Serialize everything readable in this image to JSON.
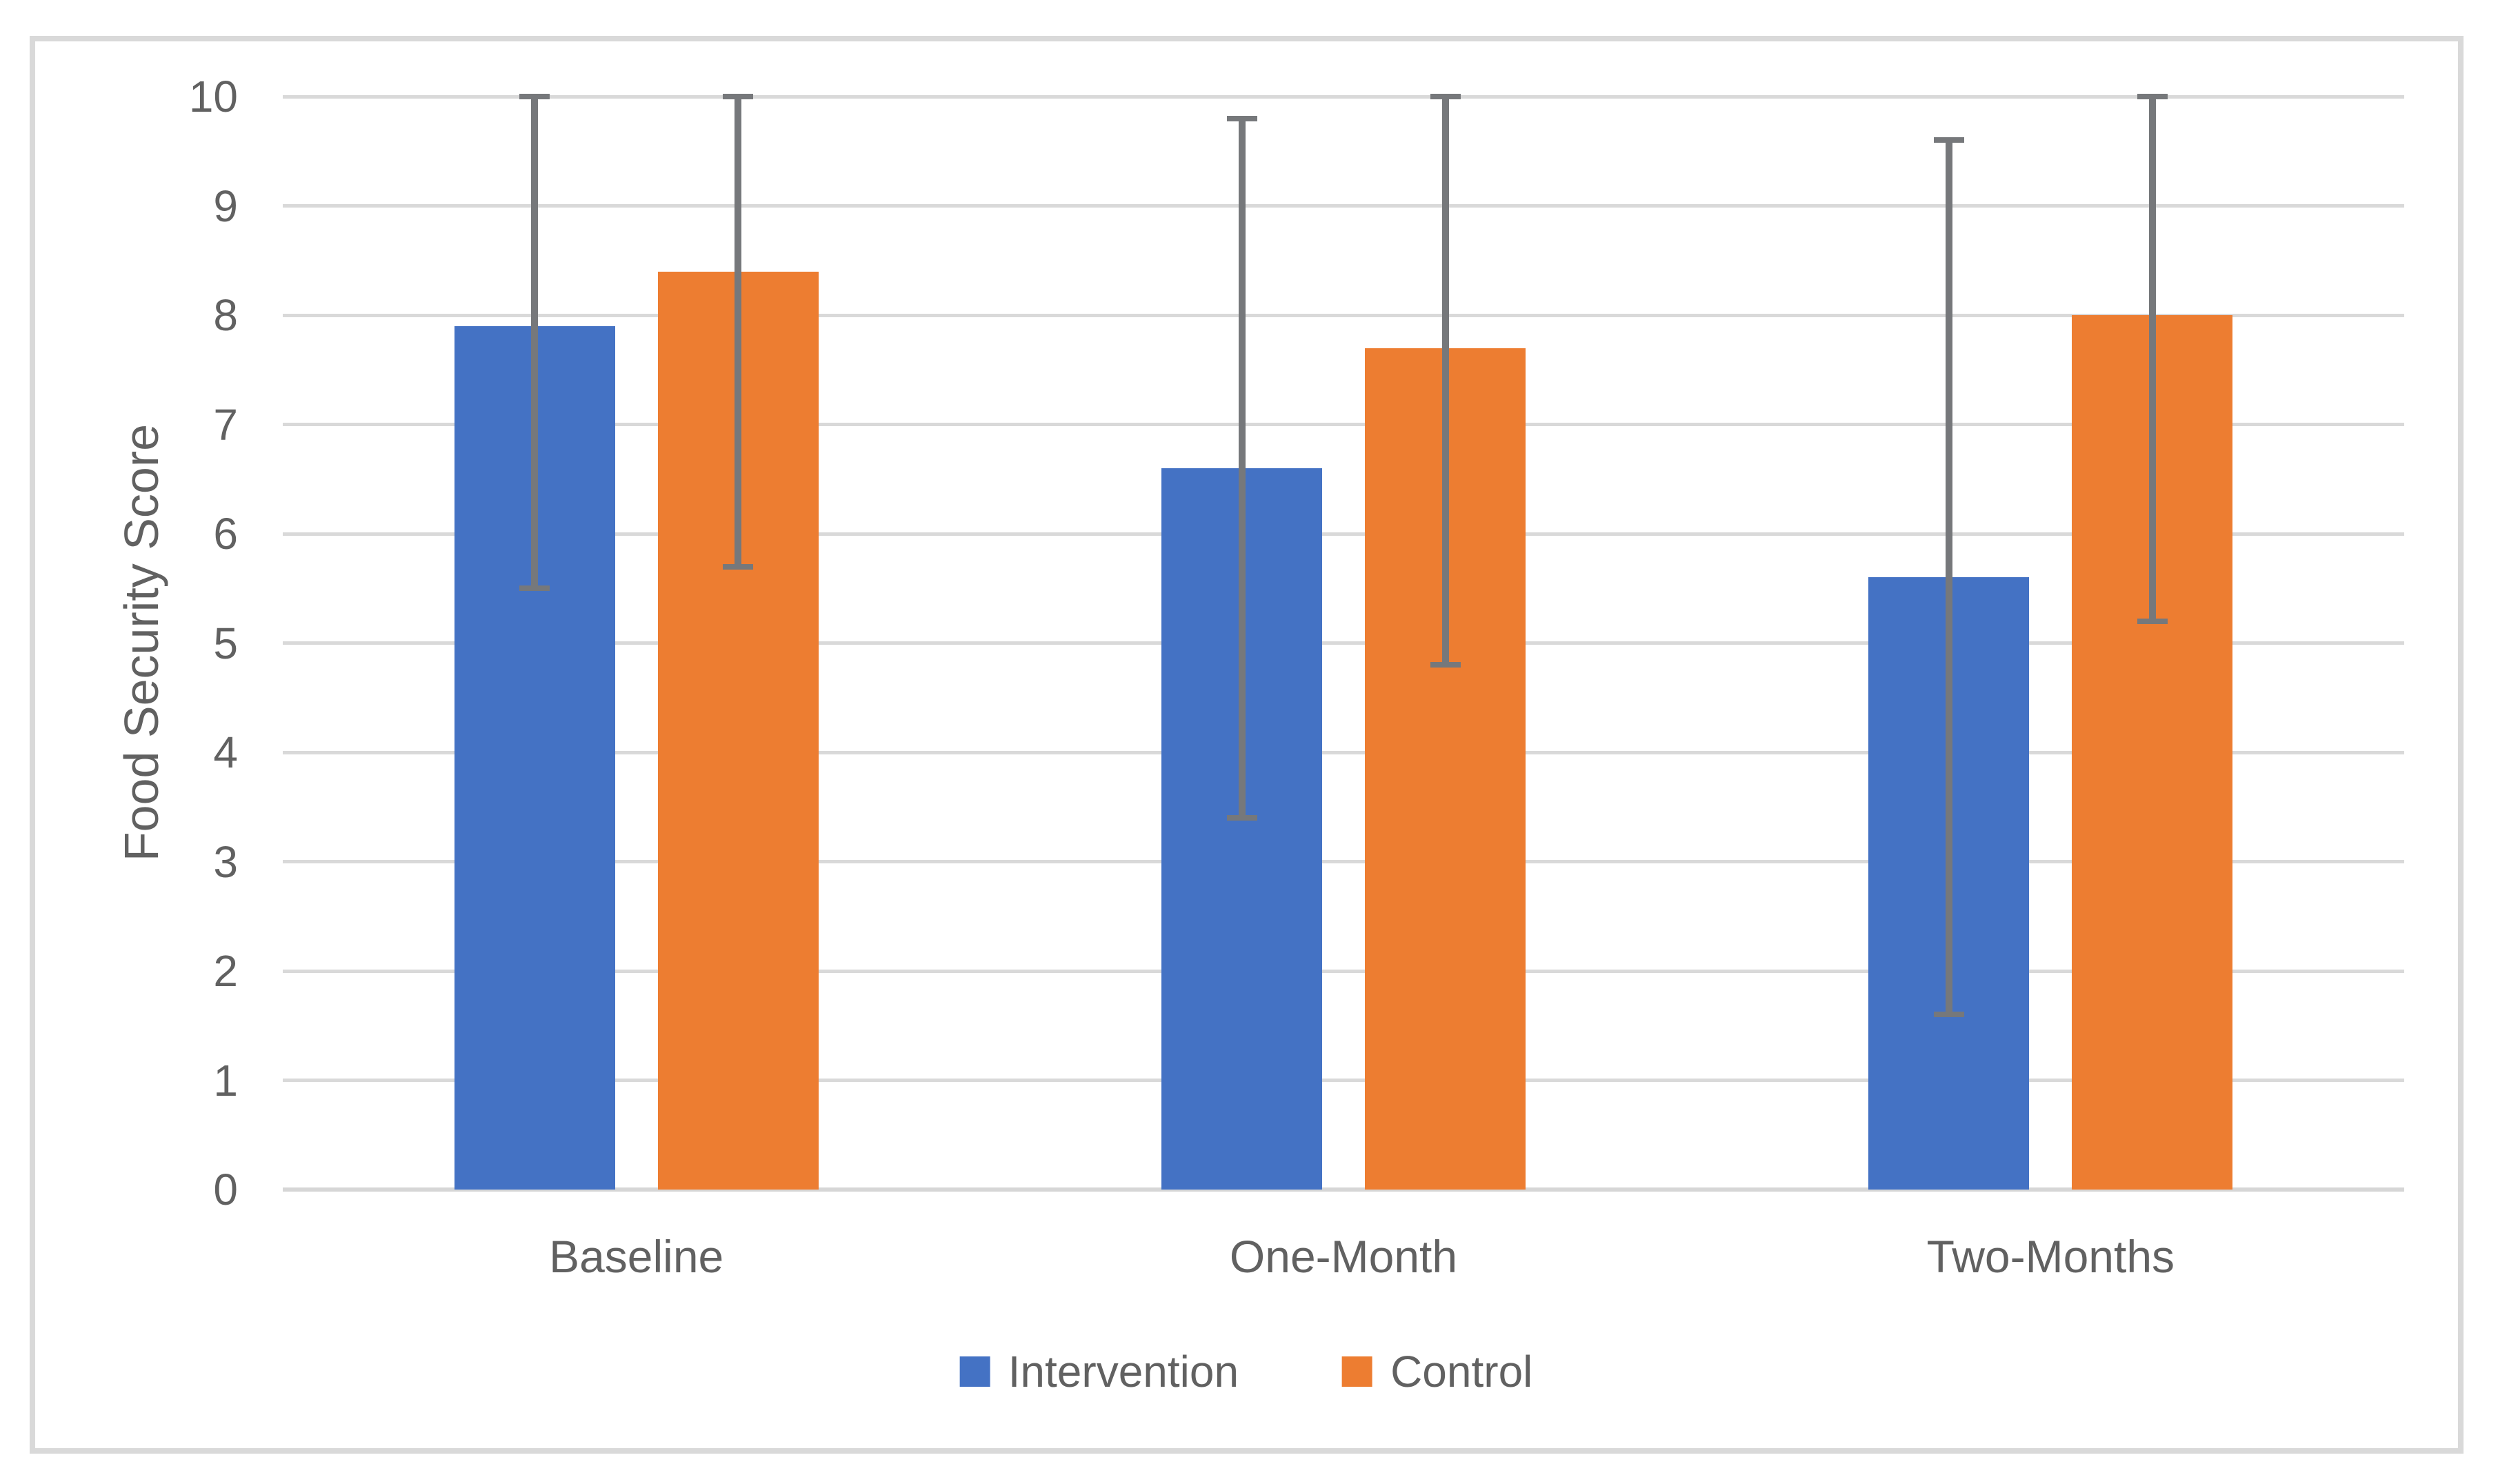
{
  "chart_data": {
    "type": "bar",
    "title": "",
    "categories": [
      "Baseline",
      "One-Month",
      "Two-Months"
    ],
    "series": [
      {
        "name": "Intervention",
        "color": "#4472C4",
        "values": [
          7.9,
          6.6,
          5.6
        ],
        "error_low": [
          5.5,
          3.4,
          1.6
        ],
        "error_high": [
          10.0,
          9.8,
          9.6
        ]
      },
      {
        "name": "Control",
        "color": "#ED7D31",
        "values": [
          8.4,
          7.7,
          8.0
        ],
        "error_low": [
          5.7,
          4.8,
          5.2
        ],
        "error_high": [
          10.0,
          10.0,
          10.0
        ]
      }
    ],
    "xlabel": "",
    "ylabel": "Food Security Score",
    "ylim": [
      0,
      10
    ],
    "ytick_step": 1,
    "yticks": [
      0,
      1,
      2,
      3,
      4,
      5,
      6,
      7,
      8,
      9,
      10
    ],
    "grid": "horizontal",
    "legend_position": "bottom",
    "error_bars": "both-ends-with-caps"
  },
  "colors": {
    "background": "#FFFFFF",
    "frame_border": "#D9D9D9",
    "gridline": "#D9D9D9",
    "axis_line": "#D6D6D6",
    "error_bar": "#76787B",
    "text": "#616161"
  }
}
